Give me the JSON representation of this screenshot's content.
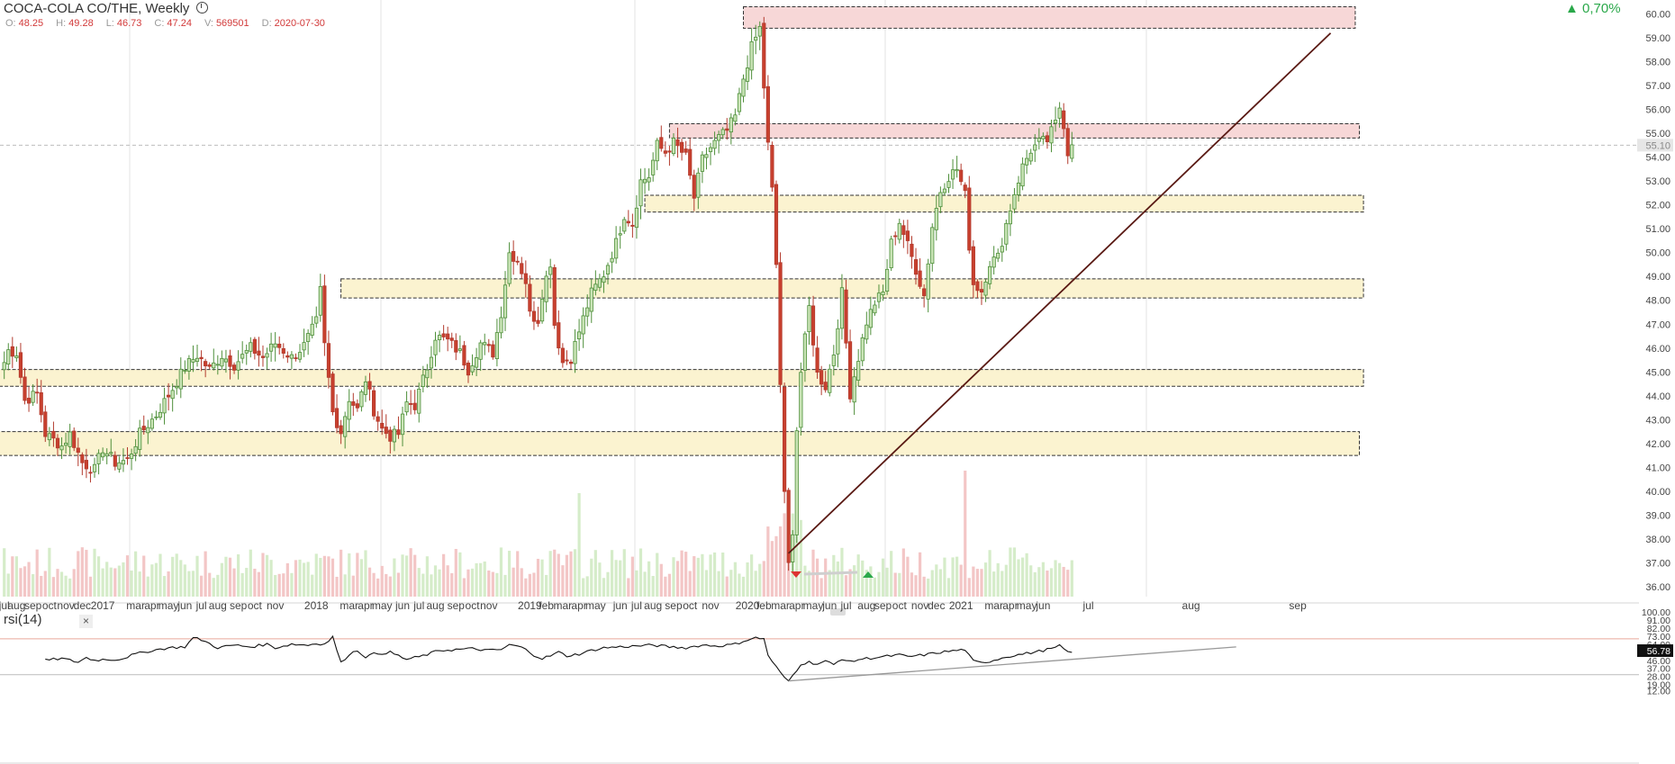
{
  "header": {
    "title": "COCA-COLA CO/THE, Weekly",
    "ohlc": [
      {
        "k": "O:",
        "v": "48.25"
      },
      {
        "k": "H:",
        "v": "49.28"
      },
      {
        "k": "L:",
        "v": "46.73"
      },
      {
        "k": "C:",
        "v": "47.24"
      },
      {
        "k": "V:",
        "v": "569501"
      },
      {
        "k": "D:",
        "v": "2020-07-30"
      }
    ],
    "change": "▲ 0,70%",
    "current_price_label": "55.10"
  },
  "colors": {
    "up": "#4e8f3a",
    "up_fill": "#c9e4b6",
    "down": "#b33b2e",
    "down_fill": "#c8402e",
    "res_fill": "#f7d7d7",
    "sup_fill": "#fbf3d0",
    "trend": "#5a1a14",
    "rsi_line": "#111111"
  },
  "chart_data": [
    {
      "type": "candlestick",
      "title": "COCA-COLA CO/THE, Weekly",
      "y_axis": {
        "ticks": [
          "60.00",
          "59.00",
          "58.00",
          "57.00",
          "56.00",
          "55.00",
          "54.00",
          "53.00",
          "52.00",
          "51.00",
          "50.00",
          "49.00",
          "48.00",
          "47.00",
          "46.00",
          "45.00",
          "44.00",
          "43.00",
          "42.00",
          "41.00",
          "40.00",
          "39.00",
          "38.00",
          "37.00",
          "36.00"
        ],
        "range": [
          35.5,
          60.3
        ]
      },
      "x_axis": {
        "labels": [
          {
            "t": "jul",
            "i": 0
          },
          {
            "t": "aug",
            "i": 3
          },
          {
            "t": "sep",
            "i": 7
          },
          {
            "t": "oct",
            "i": 11
          },
          {
            "t": "nov",
            "i": 15
          },
          {
            "t": "dec",
            "i": 19
          },
          {
            "t": "2017",
            "i": 24
          },
          {
            "t": "mar",
            "i": 32
          },
          {
            "t": "apr",
            "i": 36
          },
          {
            "t": "may",
            "i": 40
          },
          {
            "t": "jun",
            "i": 44
          },
          {
            "t": "jul",
            "i": 48
          },
          {
            "t": "aug",
            "i": 52
          },
          {
            "t": "sep",
            "i": 57
          },
          {
            "t": "oct",
            "i": 61
          },
          {
            "t": "nov",
            "i": 66
          },
          {
            "t": "2018",
            "i": 76
          },
          {
            "t": "mar",
            "i": 84
          },
          {
            "t": "apr",
            "i": 88
          },
          {
            "t": "may",
            "i": 92
          },
          {
            "t": "jun",
            "i": 97
          },
          {
            "t": "jul",
            "i": 101
          },
          {
            "t": "aug",
            "i": 105
          },
          {
            "t": "sep",
            "i": 110
          },
          {
            "t": "oct",
            "i": 114
          },
          {
            "t": "nov",
            "i": 118
          },
          {
            "t": "2019",
            "i": 128
          },
          {
            "t": "feb",
            "i": 132
          },
          {
            "t": "mar",
            "i": 136
          },
          {
            "t": "apr",
            "i": 140
          },
          {
            "t": "may",
            "i": 144
          },
          {
            "t": "jun",
            "i": 150
          },
          {
            "t": "jul",
            "i": 154
          },
          {
            "t": "aug",
            "i": 158
          },
          {
            "t": "sep",
            "i": 163
          },
          {
            "t": "oct",
            "i": 167
          },
          {
            "t": "nov",
            "i": 172
          },
          {
            "t": "2020",
            "i": 181
          },
          {
            "t": "feb",
            "i": 185
          },
          {
            "t": "mar",
            "i": 189
          },
          {
            "t": "apr",
            "i": 193
          },
          {
            "t": "may",
            "i": 197
          },
          {
            "t": "jun",
            "i": 201
          },
          {
            "t": "jul",
            "i": 205
          },
          {
            "t": "aug",
            "i": 210
          },
          {
            "t": "sep",
            "i": 214
          },
          {
            "t": "oct",
            "i": 218
          },
          {
            "t": "nov",
            "i": 223
          },
          {
            "t": "dec",
            "i": 227
          },
          {
            "t": "2021",
            "i": 233
          },
          {
            "t": "mar",
            "i": 241
          },
          {
            "t": "apr",
            "i": 245
          },
          {
            "t": "may",
            "i": 249
          },
          {
            "t": "jun",
            "i": 253
          },
          {
            "t": "jul",
            "i": 264
          },
          {
            "t": "aug",
            "i": 289
          },
          {
            "t": "sep",
            "i": 315
          }
        ]
      },
      "keypoints": [
        [
          0,
          45.4
        ],
        [
          1,
          45.9
        ],
        [
          3,
          45.8
        ],
        [
          5,
          43.8
        ],
        [
          8,
          44.1
        ],
        [
          10,
          42.4
        ],
        [
          14,
          41.9
        ],
        [
          16,
          42.4
        ],
        [
          19,
          41.2
        ],
        [
          22,
          40.9
        ],
        [
          24,
          41.8
        ],
        [
          27,
          41.2
        ],
        [
          30,
          41.3
        ],
        [
          33,
          42.4
        ],
        [
          37,
          43.2
        ],
        [
          41,
          44.3
        ],
        [
          44,
          45.2
        ],
        [
          47,
          45.7
        ],
        [
          50,
          45.1
        ],
        [
          53,
          45.7
        ],
        [
          56,
          45.3
        ],
        [
          60,
          46.0
        ],
        [
          63,
          45.6
        ],
        [
          66,
          46.2
        ],
        [
          70,
          45.6
        ],
        [
          73,
          46.1
        ],
        [
          76,
          47.1
        ],
        [
          77,
          48.4
        ],
        [
          78,
          46.1
        ],
        [
          80,
          43.3
        ],
        [
          82,
          42.5
        ],
        [
          84,
          43.9
        ],
        [
          86,
          43.4
        ],
        [
          88,
          44.7
        ],
        [
          90,
          43.4
        ],
        [
          92,
          42.6
        ],
        [
          94,
          42.3
        ],
        [
          96,
          42.4
        ],
        [
          98,
          43.7
        ],
        [
          100,
          43.6
        ],
        [
          103,
          45.2
        ],
        [
          105,
          46.5
        ],
        [
          108,
          46.3
        ],
        [
          111,
          45.8
        ],
        [
          113,
          45.1
        ],
        [
          116,
          46.2
        ],
        [
          119,
          45.8
        ],
        [
          121,
          47.5
        ],
        [
          123,
          50.0
        ],
        [
          125,
          49.7
        ],
        [
          127,
          48.8
        ],
        [
          128,
          47.4
        ],
        [
          130,
          47.2
        ],
        [
          131,
          48.3
        ],
        [
          133,
          49.6
        ],
        [
          134,
          47.0
        ],
        [
          136,
          45.4
        ],
        [
          138,
          45.6
        ],
        [
          140,
          46.7
        ],
        [
          143,
          48.3
        ],
        [
          146,
          49.1
        ],
        [
          149,
          50.4
        ],
        [
          151,
          51.6
        ],
        [
          153,
          51.2
        ],
        [
          155,
          53.0
        ],
        [
          157,
          53.2
        ],
        [
          159,
          54.5
        ],
        [
          161,
          54.2
        ],
        [
          163,
          54.6
        ],
        [
          166,
          54.0
        ],
        [
          168,
          52.3
        ],
        [
          170,
          53.9
        ],
        [
          172,
          54.4
        ],
        [
          174,
          54.8
        ],
        [
          176,
          55.1
        ],
        [
          178,
          55.7
        ],
        [
          180,
          57.3
        ],
        [
          182,
          58.6
        ],
        [
          184,
          59.4
        ],
        [
          186,
          54.5
        ],
        [
          187,
          52.6
        ],
        [
          188,
          49.5
        ],
        [
          189,
          44.5
        ],
        [
          190,
          39.8
        ],
        [
          191,
          36.9
        ],
        [
          192,
          38.4
        ],
        [
          193,
          42.6
        ],
        [
          194,
          45.0
        ],
        [
          196,
          47.7
        ],
        [
          198,
          44.9
        ],
        [
          200,
          44.4
        ],
        [
          202,
          45.8
        ],
        [
          204,
          48.3
        ],
        [
          206,
          44.1
        ],
        [
          208,
          45.6
        ],
        [
          210,
          47.1
        ],
        [
          212,
          47.9
        ],
        [
          214,
          48.3
        ],
        [
          216,
          50.4
        ],
        [
          218,
          51.3
        ],
        [
          220,
          50.3
        ],
        [
          222,
          49.3
        ],
        [
          224,
          48.2
        ],
        [
          226,
          51.1
        ],
        [
          228,
          52.6
        ],
        [
          230,
          53.2
        ],
        [
          232,
          53.5
        ],
        [
          234,
          52.4
        ],
        [
          235,
          50.3
        ],
        [
          236,
          48.7
        ],
        [
          238,
          48.4
        ],
        [
          240,
          49.6
        ],
        [
          242,
          49.8
        ],
        [
          244,
          51.2
        ],
        [
          246,
          52.5
        ],
        [
          248,
          53.6
        ],
        [
          250,
          54.3
        ],
        [
          252,
          54.6
        ],
        [
          254,
          54.7
        ],
        [
          256,
          55.4
        ],
        [
          257,
          56.1
        ],
        [
          258,
          55.4
        ],
        [
          259,
          54.2
        ],
        [
          260,
          54.7
        ]
      ],
      "zones": [
        {
          "lo": 59.4,
          "hi": 60.3,
          "start": 180,
          "end": 329,
          "kind": "resistance"
        },
        {
          "lo": 54.8,
          "hi": 55.4,
          "start": 162,
          "end": 330,
          "kind": "resistance"
        },
        {
          "lo": 51.7,
          "hi": 52.4,
          "start": 156,
          "end": 331,
          "kind": "support"
        },
        {
          "lo": 48.1,
          "hi": 48.9,
          "start": 82,
          "end": 331,
          "kind": "support"
        },
        {
          "lo": 44.4,
          "hi": 45.1,
          "start": -2,
          "end": 331,
          "kind": "support"
        },
        {
          "lo": 41.5,
          "hi": 42.5,
          "start": -2,
          "end": 330,
          "kind": "support"
        }
      ],
      "trendline": [
        [
          191,
          37.4
        ],
        [
          323,
          59.2
        ]
      ],
      "dashed_price": 54.5
    },
    {
      "type": "line",
      "title": "rsi(14)",
      "y_axis": {
        "ticks": [
          "100.00",
          "91.00",
          "82.00",
          "73.00",
          "64.00",
          "55.00",
          "46.00",
          "37.00",
          "28.00",
          "19.00",
          "12.00"
        ],
        "range": [
          12,
          100
        ]
      },
      "current_value": "56.78",
      "keypoints": [
        [
          10,
          46
        ],
        [
          14,
          48
        ],
        [
          18,
          44
        ],
        [
          20,
          49
        ],
        [
          22,
          46
        ],
        [
          24,
          47
        ],
        [
          28,
          47
        ],
        [
          32,
          53
        ],
        [
          36,
          57
        ],
        [
          40,
          60
        ],
        [
          44,
          61
        ],
        [
          46,
          71
        ],
        [
          48,
          69
        ],
        [
          52,
          60
        ],
        [
          56,
          63
        ],
        [
          60,
          61
        ],
        [
          64,
          64
        ],
        [
          66,
          60
        ],
        [
          70,
          64
        ],
        [
          74,
          63
        ],
        [
          76,
          65
        ],
        [
          78,
          64
        ],
        [
          80,
          72
        ],
        [
          82,
          43
        ],
        [
          84,
          53
        ],
        [
          86,
          57
        ],
        [
          88,
          50
        ],
        [
          90,
          53
        ],
        [
          94,
          55
        ],
        [
          98,
          47
        ],
        [
          102,
          51
        ],
        [
          106,
          57
        ],
        [
          110,
          58
        ],
        [
          114,
          59
        ],
        [
          118,
          57
        ],
        [
          121,
          58
        ],
        [
          123,
          63
        ],
        [
          125,
          62
        ],
        [
          127,
          58
        ],
        [
          129,
          52
        ],
        [
          131,
          48
        ],
        [
          133,
          51
        ],
        [
          135,
          55
        ],
        [
          137,
          51
        ],
        [
          140,
          53
        ],
        [
          143,
          57
        ],
        [
          146,
          60
        ],
        [
          150,
          61
        ],
        [
          154,
          62
        ],
        [
          158,
          63
        ],
        [
          162,
          61
        ],
        [
          166,
          60
        ],
        [
          170,
          63
        ],
        [
          174,
          62
        ],
        [
          178,
          64
        ],
        [
          181,
          69
        ],
        [
          183,
          71
        ],
        [
          185,
          70
        ],
        [
          186,
          52
        ],
        [
          187,
          44
        ],
        [
          189,
          33
        ],
        [
          190,
          26
        ],
        [
          191,
          23
        ],
        [
          192,
          29
        ],
        [
          194,
          42
        ],
        [
          196,
          44
        ],
        [
          198,
          42
        ],
        [
          200,
          45
        ],
        [
          202,
          41
        ],
        [
          204,
          48
        ],
        [
          206,
          44
        ],
        [
          208,
          47
        ],
        [
          212,
          49
        ],
        [
          216,
          51
        ],
        [
          218,
          52
        ],
        [
          220,
          50
        ],
        [
          224,
          52
        ],
        [
          228,
          55
        ],
        [
          232,
          57
        ],
        [
          234,
          58
        ],
        [
          235,
          51
        ],
        [
          236,
          45
        ],
        [
          238,
          43
        ],
        [
          240,
          45
        ],
        [
          244,
          50
        ],
        [
          248,
          53
        ],
        [
          252,
          56
        ],
        [
          254,
          58
        ],
        [
          256,
          60
        ],
        [
          257,
          62
        ],
        [
          258,
          59
        ],
        [
          259,
          55
        ],
        [
          260,
          56
        ]
      ],
      "levels": [
        70,
        30
      ],
      "trendline": [
        [
          191,
          23
        ],
        [
          300,
          61
        ]
      ]
    }
  ]
}
